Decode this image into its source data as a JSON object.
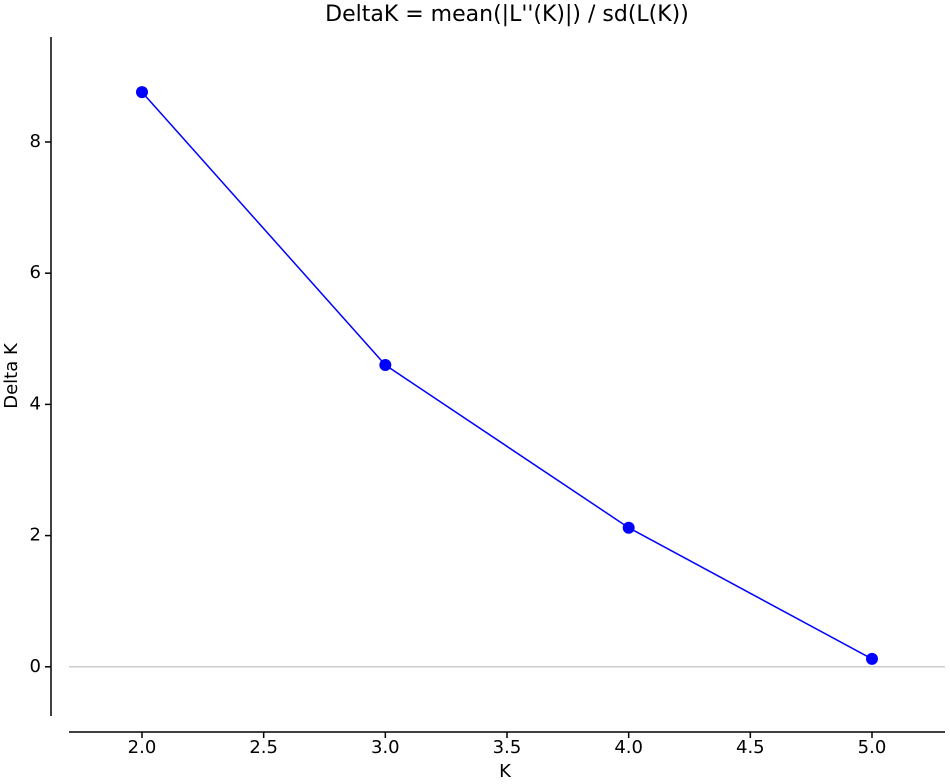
{
  "chart_data": {
    "type": "line",
    "title": "DeltaK = mean(|L''(K)|) / sd(L(K))",
    "x_label": "K",
    "y_label": "Delta K",
    "x": [
      2,
      3,
      4,
      5
    ],
    "series": [
      {
        "color": "#0000ff",
        "values": [
          8.76,
          4.6,
          2.12,
          0.12
        ]
      }
    ],
    "xlim": [
      1.7,
      5.3
    ],
    "ylim": [
      -0.75,
      9.6
    ],
    "xticks": [
      {
        "value": 2,
        "label": "2.0"
      },
      {
        "value": 2.5,
        "label": "2.5"
      },
      {
        "value": 3,
        "label": "3.0"
      },
      {
        "value": 3.5,
        "label": "3.5"
      },
      {
        "value": 4,
        "label": "4.0"
      },
      {
        "value": 4.5,
        "label": "4.5"
      },
      {
        "value": 5,
        "label": "5.0"
      }
    ],
    "yticks": [
      0,
      2,
      4,
      6,
      8
    ],
    "hline": 0,
    "hline_color": "#bbbbbb"
  }
}
